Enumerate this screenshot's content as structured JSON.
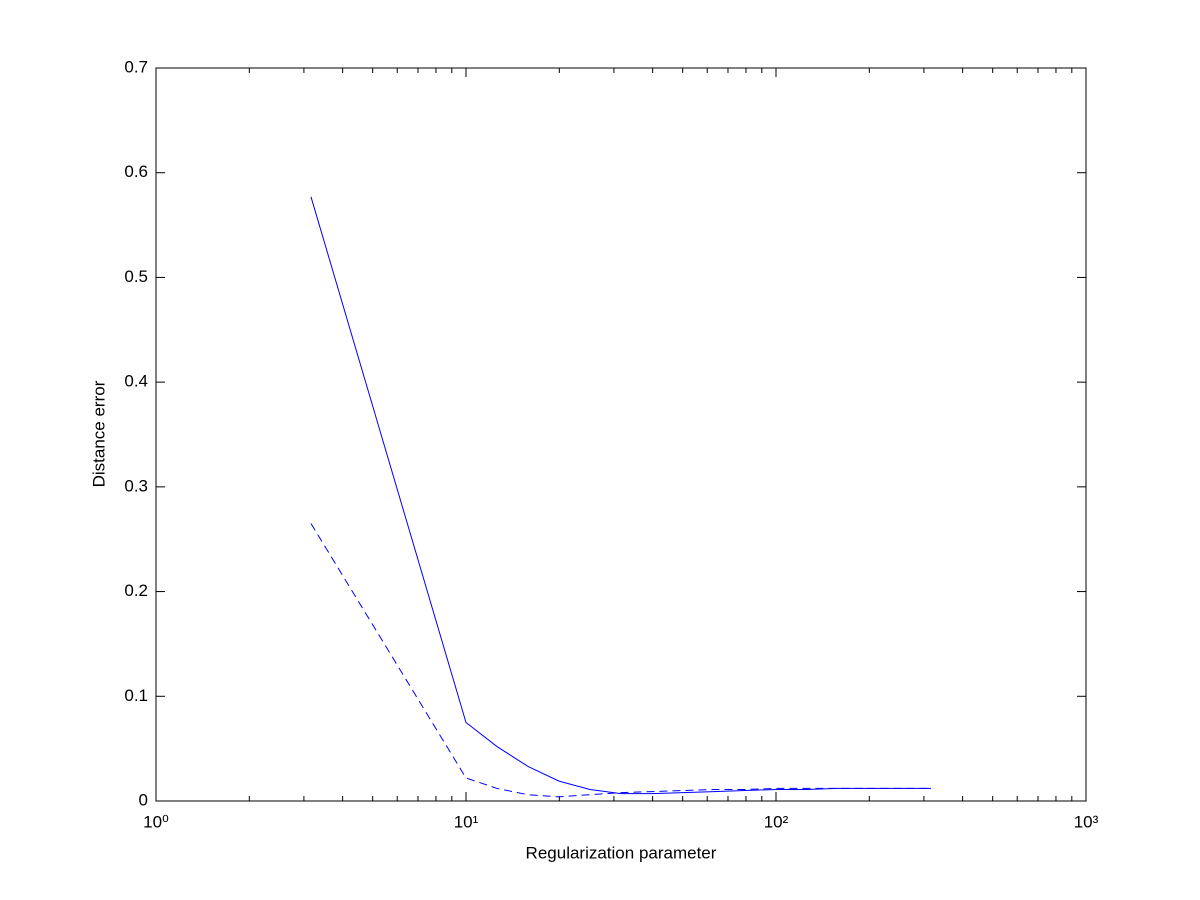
{
  "chart_data": {
    "type": "line",
    "xlabel": "Regularization parameter",
    "ylabel": "Distance error",
    "xscale": "log",
    "x": [
      3.162,
      10,
      12.59,
      15.85,
      19.95,
      25.12,
      31.62,
      39.81,
      50.12,
      63.1,
      79.43,
      100,
      125.9,
      158.5,
      199.5,
      251.2,
      316.2
    ],
    "series": [
      {
        "color": "#0000ff",
        "linestyle": "solid",
        "values": [
          0.577,
          0.075,
          0.052,
          0.033,
          0.019,
          0.011,
          0.007,
          0.007,
          0.008,
          0.009,
          0.01,
          0.011,
          0.011,
          0.012,
          0.012,
          0.012,
          0.012
        ]
      },
      {
        "color": "#0000ff",
        "linestyle": "dashed",
        "values": [
          0.265,
          0.022,
          0.012,
          0.006,
          0.004,
          0.006,
          0.008,
          0.009,
          0.01,
          0.011,
          0.011,
          0.012,
          0.012,
          0.012,
          0.012,
          0.012,
          0.012
        ]
      }
    ],
    "xlim": [
      1,
      1000
    ],
    "xticks": [
      {
        "value": 1,
        "label": "10⁰"
      },
      {
        "value": 10,
        "label": "10¹"
      },
      {
        "value": 100,
        "label": "10²"
      },
      {
        "value": 1000,
        "label": "10³"
      }
    ],
    "ylim": [
      0,
      0.7
    ],
    "yticks": [
      0,
      0.1,
      0.2,
      0.3,
      0.4,
      0.5,
      0.6,
      0.7
    ],
    "grid": false
  }
}
